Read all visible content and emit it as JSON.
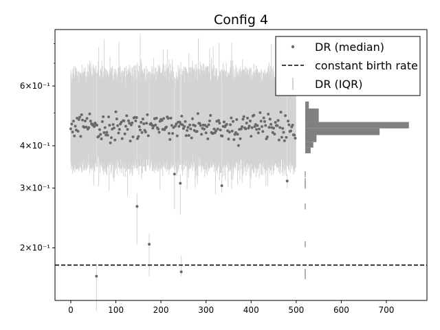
{
  "chart_data": {
    "type": "scatter",
    "title": "Config 4",
    "xlabel": "",
    "ylabel": "",
    "xlim": [
      -35,
      790
    ],
    "ylim": [
      0.14,
      0.88
    ],
    "yscale": "log",
    "x_ticks": [
      0,
      100,
      200,
      300,
      400,
      500,
      600,
      700
    ],
    "x_tick_labels": [
      "0",
      "100",
      "200",
      "300",
      "400",
      "500",
      "600",
      "700"
    ],
    "y_ticks": [
      0.2,
      0.3,
      0.4,
      0.6
    ],
    "y_tick_labels": [
      "2×10⁻¹",
      "3×10⁻¹",
      "4×10⁻¹",
      "6×10⁻¹"
    ],
    "y_minor_ticks": [
      0.5,
      0.7,
      0.8
    ],
    "grid": false,
    "legend_position": "top-right",
    "legend": [
      {
        "label": "DR (median)",
        "marker": "dot"
      },
      {
        "label": "constant birth rate",
        "marker": "dashed-line"
      },
      {
        "label": "DR (IQR)",
        "marker": "vertical-bar"
      }
    ],
    "colors": {
      "median": "#696969",
      "iqr": "#d3d3d3",
      "reference": "#000000",
      "histogram": "#808080"
    },
    "series": [
      {
        "name": "DR (median)",
        "x_range": [
          0,
          499
        ],
        "typical_median": 0.455,
        "typical_iqr": [
          0.345,
          0.66
        ],
        "outliers": [
          {
            "x": 57,
            "median": 0.165,
            "iqr": [
              0.13,
              0.18
            ]
          },
          {
            "x": 147,
            "median": 0.265,
            "iqr": [
              0.205,
              0.29
            ]
          },
          {
            "x": 174,
            "median": 0.205,
            "iqr": [
              0.165,
              0.22
            ]
          },
          {
            "x": 230,
            "median": 0.33,
            "iqr": [
              0.26,
              0.35
            ]
          },
          {
            "x": 243,
            "median": 0.31,
            "iqr": [
              0.25,
              0.33
            ]
          },
          {
            "x": 245,
            "median": 0.17,
            "iqr": [
              0.165,
              0.19
            ]
          },
          {
            "x": 335,
            "median": 0.305,
            "iqr": [
              0.29,
              0.33
            ]
          },
          {
            "x": 480,
            "median": 0.315,
            "iqr": [
              0.3,
              0.33
            ]
          }
        ]
      },
      {
        "name": "constant birth rate",
        "y": 0.178
      }
    ],
    "histogram": {
      "orientation": "horizontal",
      "base_x": 520,
      "bins": [
        {
          "y0": 0.38,
          "y1": 0.395,
          "count": 12
        },
        {
          "y0": 0.395,
          "y1": 0.41,
          "count": 18
        },
        {
          "y0": 0.41,
          "y1": 0.43,
          "count": 25
        },
        {
          "y0": 0.43,
          "y1": 0.45,
          "count": 165
        },
        {
          "y0": 0.45,
          "y1": 0.47,
          "count": 230
        },
        {
          "y0": 0.47,
          "y1": 0.49,
          "count": 30
        },
        {
          "y0": 0.49,
          "y1": 0.515,
          "count": 30
        },
        {
          "y0": 0.515,
          "y1": 0.54,
          "count": 8
        }
      ]
    }
  }
}
